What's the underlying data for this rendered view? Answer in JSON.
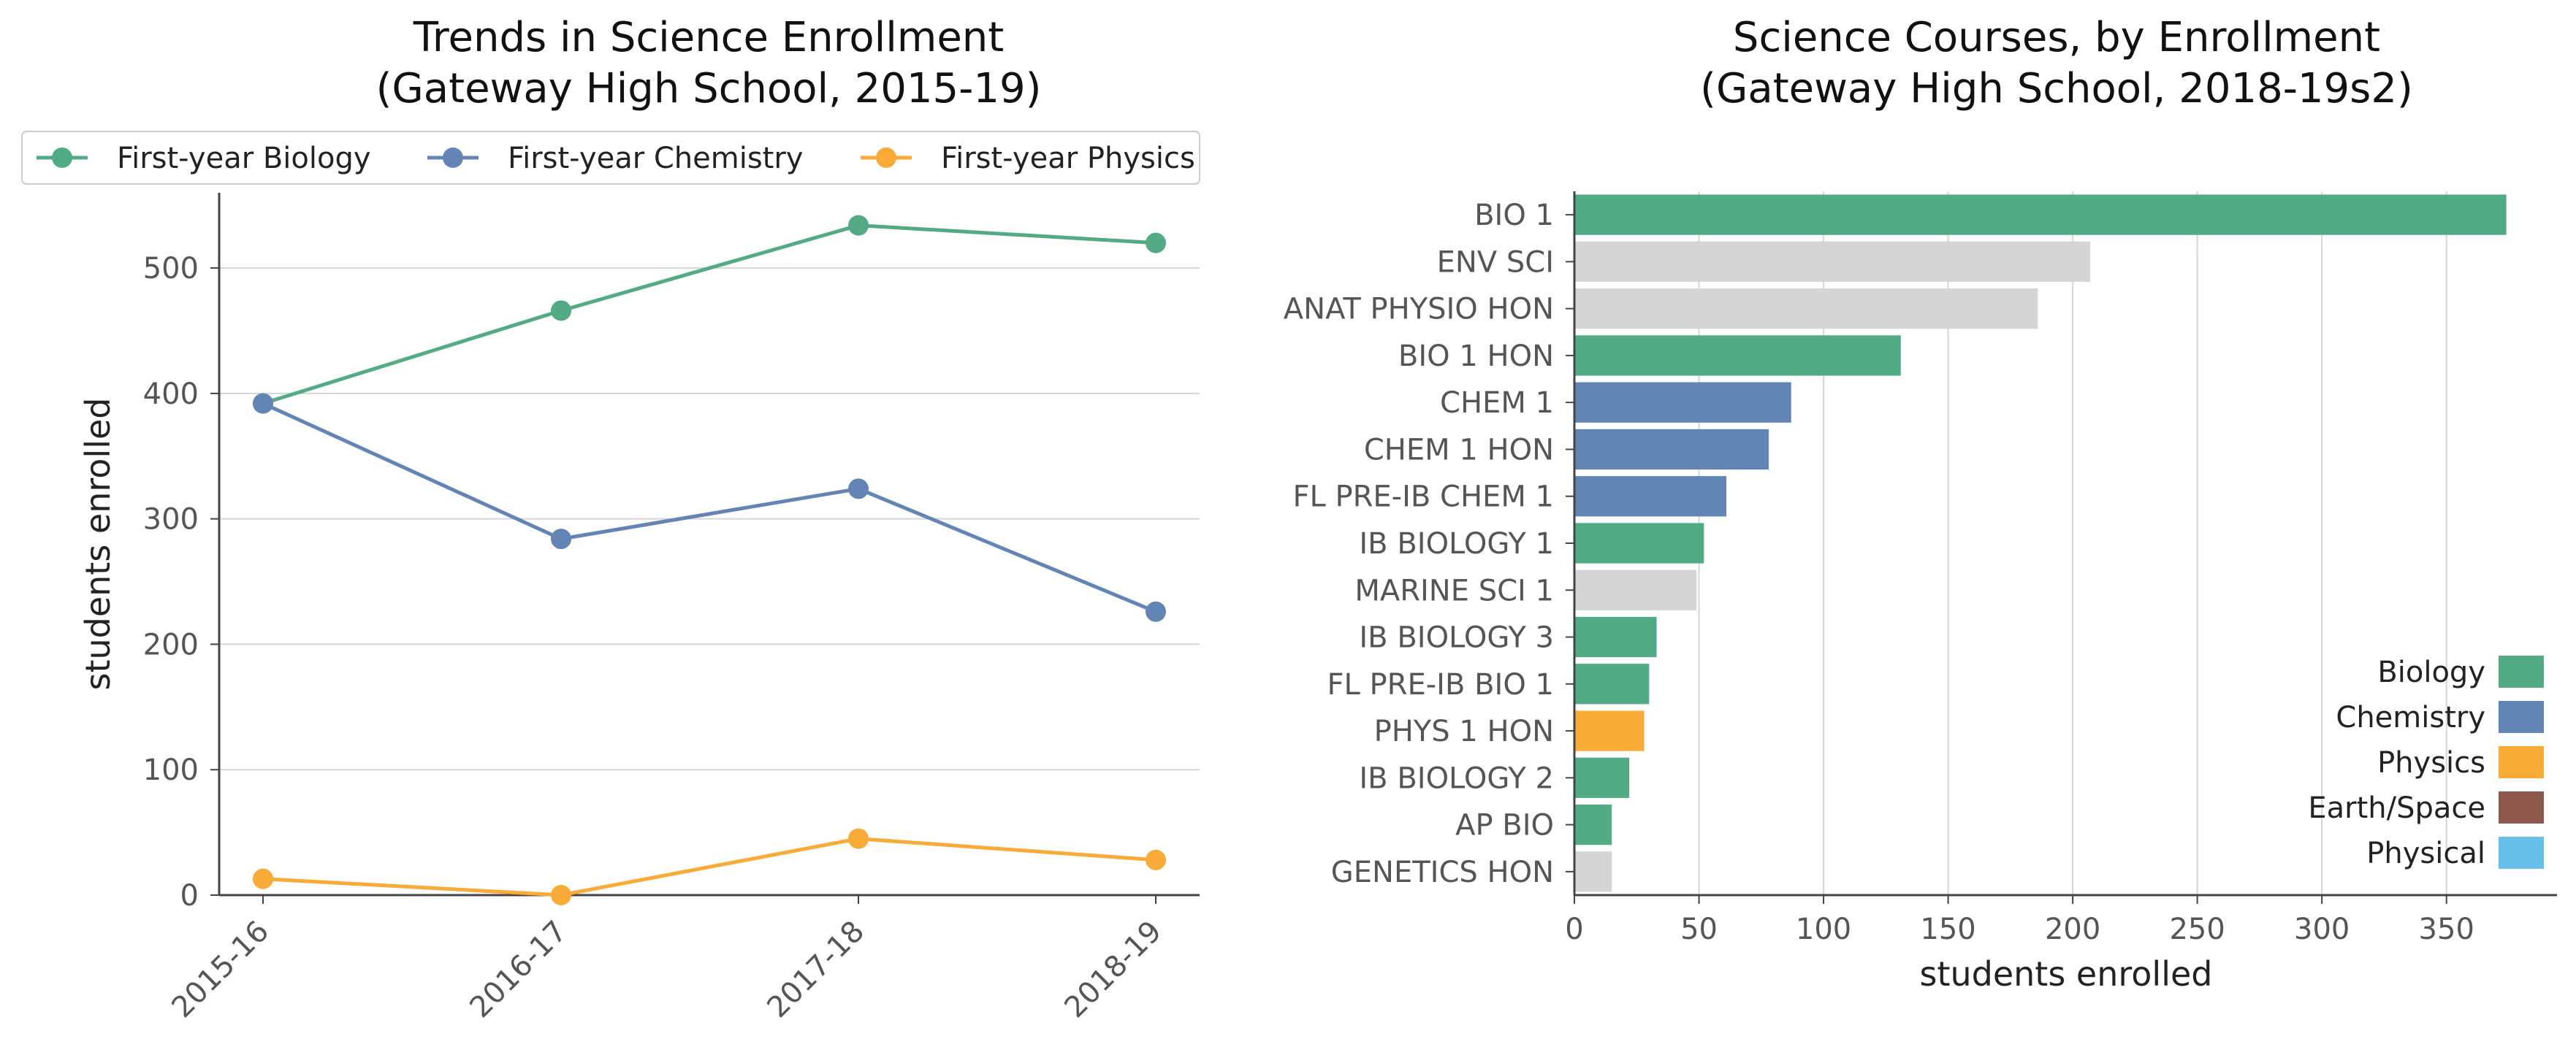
{
  "chart_data": [
    {
      "type": "line",
      "title": "Trends in Science Enrollment\n(Gateway High School, 2015-19)",
      "xlabel": "",
      "ylabel": "students enrolled",
      "categories": [
        "2015-16",
        "2016-17",
        "2017-18",
        "2018-19"
      ],
      "ylim": [
        0,
        560
      ],
      "yticks": [
        0,
        100,
        200,
        300,
        400,
        500
      ],
      "grid": "horizontal",
      "legend_position": "top",
      "series": [
        {
          "name": "First-year Biology",
          "color": "#52ab84",
          "values": [
            392,
            466,
            534,
            520
          ]
        },
        {
          "name": "First-year Chemistry",
          "color": "#6385b6",
          "values": [
            392,
            284,
            324,
            226
          ]
        },
        {
          "name": "First-year Physics",
          "color": "#f9ab37",
          "values": [
            13,
            0,
            45,
            28
          ]
        }
      ]
    },
    {
      "type": "bar",
      "orientation": "horizontal",
      "title": "Science Courses, by Enrollment\n(Gateway High School, 2018-19s2)",
      "xlabel": "students enrolled",
      "ylabel": "",
      "xlim": [
        0,
        390
      ],
      "xticks": [
        0,
        50,
        100,
        150,
        200,
        250,
        300,
        350
      ],
      "grid": "vertical",
      "legend_position": "lower-right",
      "categories": [
        "BIO 1",
        "ENV SCI",
        "ANAT PHYSIO HON",
        "BIO 1 HON",
        "CHEM 1",
        "CHEM 1 HON",
        "FL PRE-IB CHEM 1",
        "IB BIOLOGY 1",
        "MARINE SCI 1",
        "IB BIOLOGY 3",
        "FL PRE-IB BIO 1",
        "PHYS 1 HON",
        "IB BIOLOGY 2",
        "AP BIO",
        "GENETICS HON"
      ],
      "values": [
        374,
        207,
        186,
        131,
        87,
        78,
        61,
        52,
        49,
        33,
        30,
        28,
        22,
        15,
        15
      ],
      "bar_groups": [
        "Biology",
        "Other",
        "Other",
        "Biology",
        "Chemistry",
        "Chemistry",
        "Chemistry",
        "Biology",
        "Other",
        "Biology",
        "Biology",
        "Physics",
        "Biology",
        "Biology",
        "Other"
      ],
      "group_colors": {
        "Biology": "#52ab84",
        "Chemistry": "#6385b6",
        "Physics": "#f9ab37",
        "Earth/Space": "#8c574b",
        "Physical": "#68bfea",
        "Other": "#d5d5d5"
      },
      "legend": [
        "Biology",
        "Chemistry",
        "Physics",
        "Earth/Space",
        "Physical"
      ]
    }
  ]
}
